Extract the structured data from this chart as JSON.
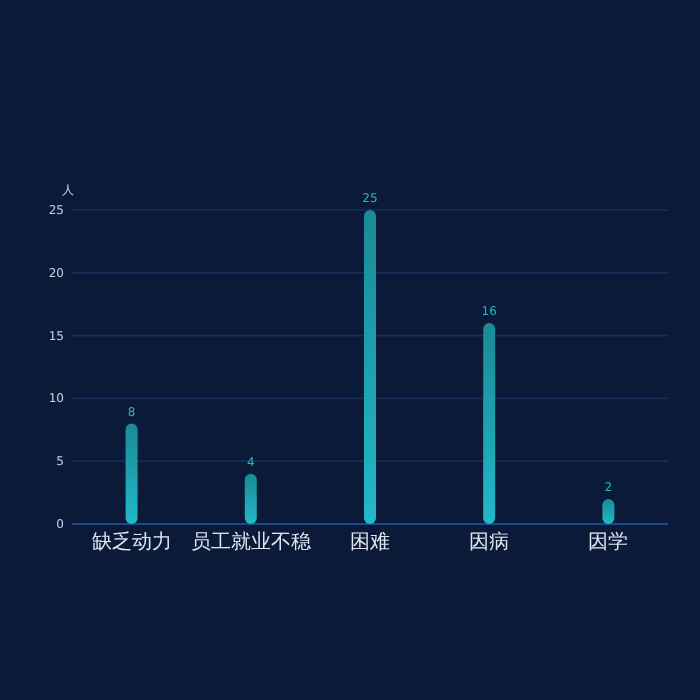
{
  "chart_data": {
    "type": "bar",
    "ylabel": "人",
    "categories": [
      "缺乏动力",
      "员工就业不稳",
      "困难",
      "因病",
      "因学"
    ],
    "values": [
      8,
      4,
      25,
      16,
      2
    ],
    "color": "#22b8c8",
    "ylim": [
      0,
      25
    ],
    "yticks": [
      0,
      5,
      10,
      15,
      20,
      25
    ],
    "grid": "y",
    "data_labels": true
  }
}
